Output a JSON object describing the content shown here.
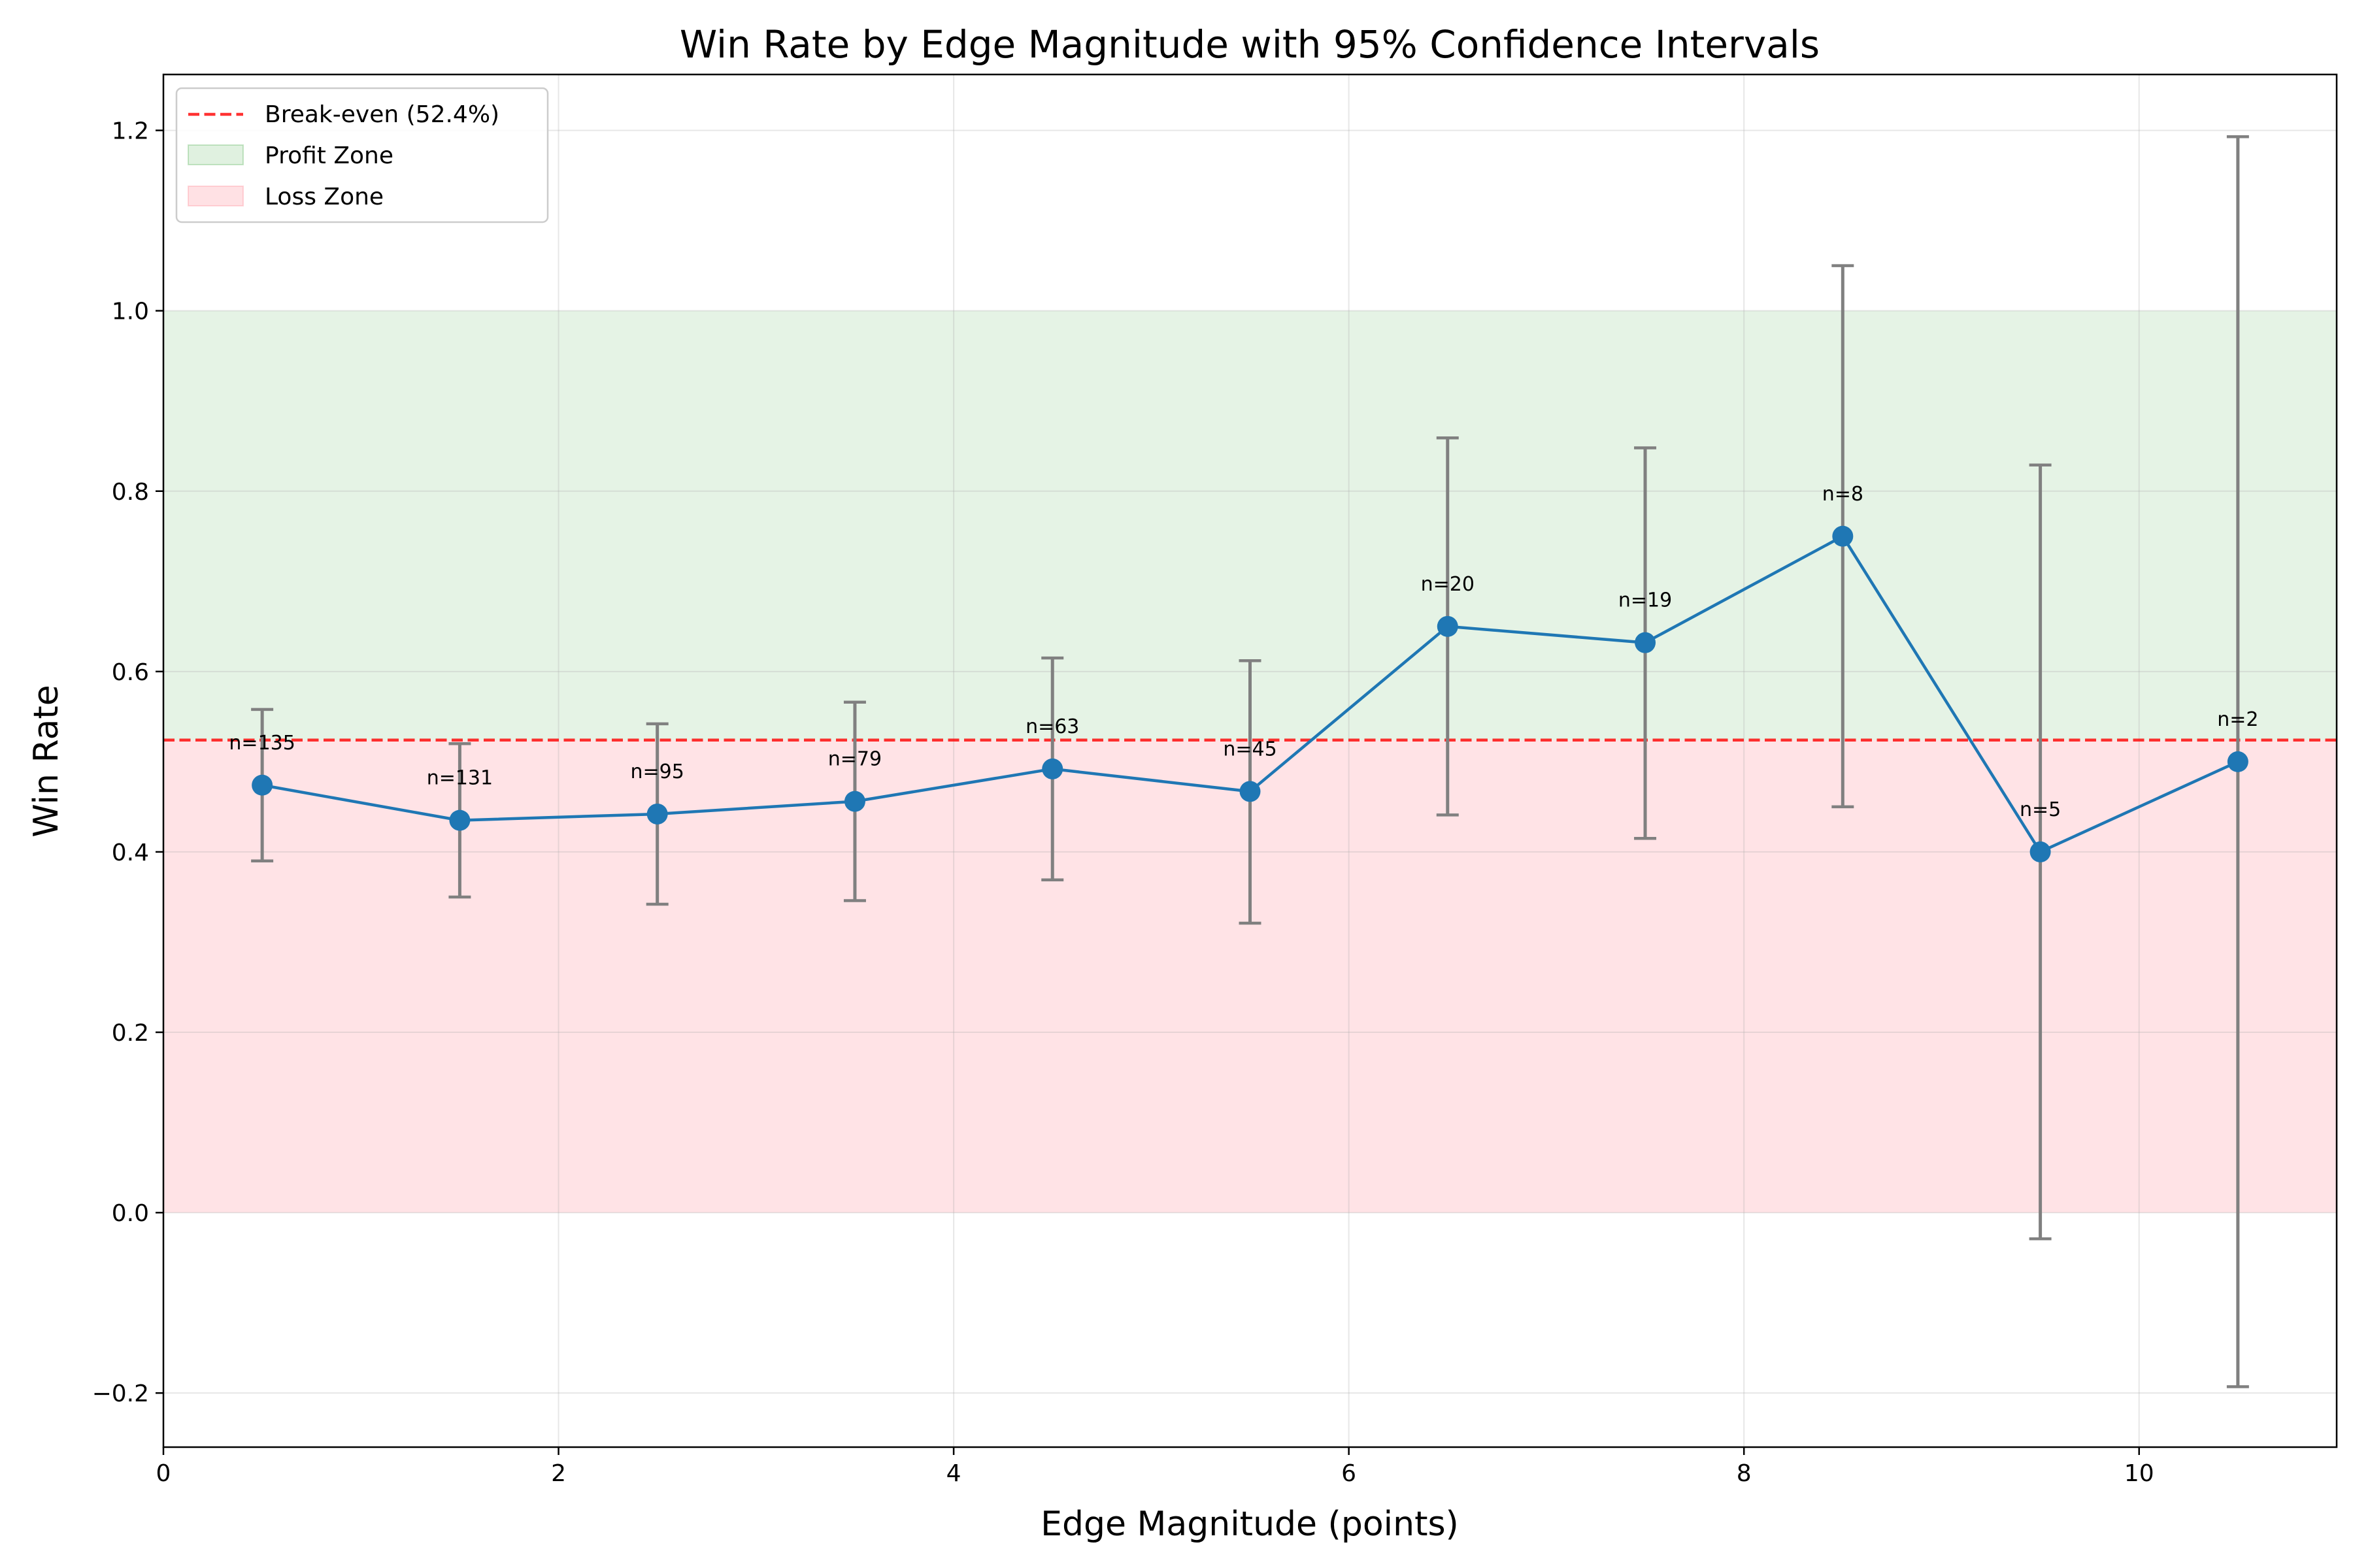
{
  "chart_data": {
    "type": "line",
    "title": "Win Rate by Edge Magnitude with 95% Confidence Intervals",
    "xlabel": "Edge Magnitude (points)",
    "ylabel": "Win Rate",
    "xlim": [
      0,
      11
    ],
    "ylim": [
      -0.26,
      1.262
    ],
    "xticks": [
      0,
      2,
      4,
      6,
      8,
      10
    ],
    "yticks": [
      -0.2,
      0.0,
      0.2,
      0.4,
      0.6,
      0.8,
      1.0,
      1.2
    ],
    "xtick_labels": [
      "0",
      "2",
      "4",
      "6",
      "8",
      "10"
    ],
    "ytick_labels": [
      "−0.2",
      "0.0",
      "0.2",
      "0.4",
      "0.6",
      "0.8",
      "1.0",
      "1.2"
    ],
    "grid": true,
    "legend_position": "top-left",
    "break_even": {
      "value": 0.524,
      "label": "Break-even (52.4%)",
      "color": "#ff0000"
    },
    "zones": [
      {
        "label": "Profit Zone",
        "from": 0.524,
        "to": 1.0,
        "color": "#2ca02c"
      },
      {
        "label": "Loss Zone",
        "from": 0.0,
        "to": 0.524,
        "color": "#ff9aa6"
      }
    ],
    "series": [
      {
        "color": "#1f77b4",
        "errorbar_color": "#808080",
        "points": [
          {
            "x": 0.5,
            "y": 0.474,
            "lower": 0.39,
            "upper": 0.558,
            "label": "n=135"
          },
          {
            "x": 1.5,
            "y": 0.435,
            "lower": 0.35,
            "upper": 0.52,
            "label": "n=131"
          },
          {
            "x": 2.5,
            "y": 0.442,
            "lower": 0.342,
            "upper": 0.542,
            "label": "n=95"
          },
          {
            "x": 3.5,
            "y": 0.456,
            "lower": 0.346,
            "upper": 0.566,
            "label": "n=79"
          },
          {
            "x": 4.5,
            "y": 0.492,
            "lower": 0.369,
            "upper": 0.615,
            "label": "n=63"
          },
          {
            "x": 5.5,
            "y": 0.467,
            "lower": 0.321,
            "upper": 0.612,
            "label": "n=45"
          },
          {
            "x": 6.5,
            "y": 0.65,
            "lower": 0.441,
            "upper": 0.859,
            "label": "n=20"
          },
          {
            "x": 7.5,
            "y": 0.632,
            "lower": 0.415,
            "upper": 0.848,
            "label": "n=19"
          },
          {
            "x": 8.5,
            "y": 0.75,
            "lower": 0.45,
            "upper": 1.05,
            "label": "n=8"
          },
          {
            "x": 9.5,
            "y": 0.4,
            "lower": -0.029,
            "upper": 0.829,
            "label": "n=5"
          },
          {
            "x": 10.5,
            "y": 0.5,
            "lower": -0.193,
            "upper": 1.193,
            "label": "n=2"
          }
        ]
      }
    ]
  }
}
